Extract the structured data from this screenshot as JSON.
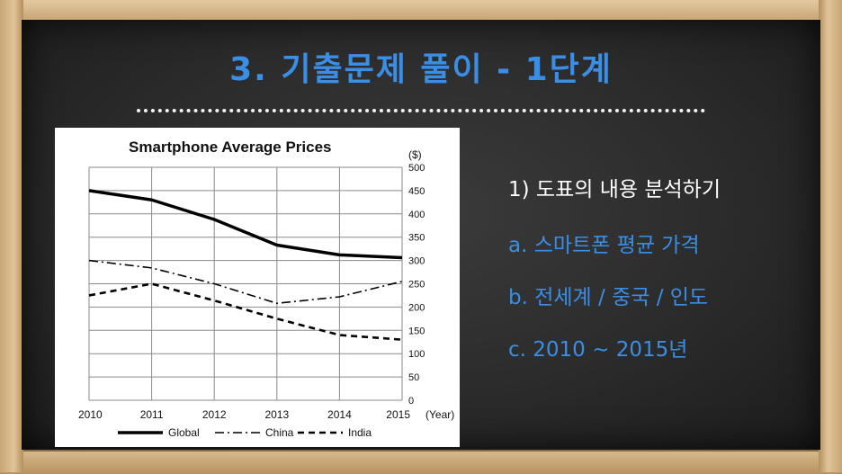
{
  "slide": {
    "title": "3. 기출문제 풀이 - 1단계"
  },
  "notes": {
    "heading": "1) 도표의 내용 분석하기",
    "items": [
      {
        "text": "a. 스마트폰 평균 가격"
      },
      {
        "text": "b. 전세계 / 중국 / 인도"
      },
      {
        "text": "c. 2010 ~ 2015년"
      }
    ]
  },
  "colors": {
    "title": "#3a8ee6",
    "heading": "#ffffff",
    "items": "#3a8ee6",
    "board": "#2e2e2e"
  },
  "chart_data": {
    "type": "line",
    "title": "Smartphone Average Prices",
    "ylabel": "($)",
    "xlabel": "(Year)",
    "x": [
      "2010",
      "2011",
      "2012",
      "2013",
      "2014",
      "2015"
    ],
    "ylim": [
      0,
      500
    ],
    "yticks": [
      "0",
      "50",
      "100",
      "150",
      "200",
      "250",
      "300",
      "350",
      "400",
      "450",
      "500"
    ],
    "grid": true,
    "legend_position": "bottom",
    "series": [
      {
        "name": "Global",
        "style": "solid",
        "values": [
          450,
          430,
          388,
          333,
          312,
          306
        ]
      },
      {
        "name": "China",
        "style": "dashdot",
        "values": [
          300,
          284,
          250,
          208,
          222,
          255
        ]
      },
      {
        "name": "India",
        "style": "dashed",
        "values": [
          225,
          250,
          214,
          175,
          140,
          130
        ]
      }
    ]
  }
}
